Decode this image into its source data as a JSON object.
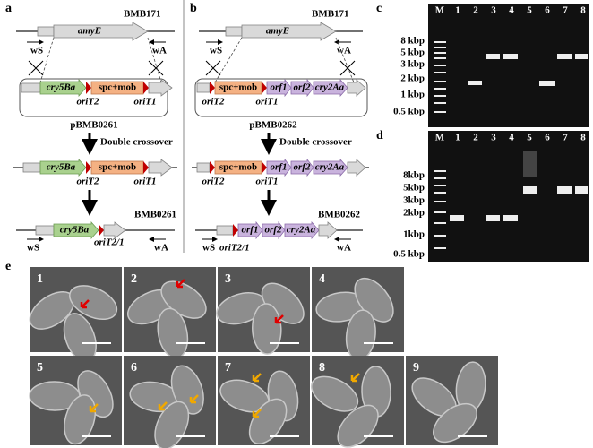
{
  "panel_labels": [
    "a",
    "b",
    "c",
    "d",
    "e"
  ],
  "panel_a": {
    "strain": "BMB171",
    "locus": "amyE",
    "primers": [
      "wS",
      "wA"
    ],
    "plasmid_genes": [
      "cry5Ba",
      "spc+mob"
    ],
    "plasmid_oris": [
      "oriT2",
      "oriT1"
    ],
    "plasmid": "pBMB0261",
    "step": "Double crossover",
    "intermediate_genes": [
      "cry5Ba",
      "spc+mob"
    ],
    "intermediate_oris": [
      "oriT2",
      "oriT1"
    ],
    "final_strain": "BMB0261",
    "final_primers": [
      "wS",
      "wA"
    ],
    "final_gene": "cry5Ba",
    "final_ori": "oriT2/1"
  },
  "panel_b": {
    "strain": "BMB171",
    "locus": "amyE",
    "primers": [
      "wS",
      "wA"
    ],
    "plasmid_genes": [
      "spc+mob",
      "orf1",
      "orf2",
      "cry2Aa"
    ],
    "plasmid_oris": [
      "oriT2",
      "oriT1"
    ],
    "plasmid": "pBMB0262",
    "step": "Double crossover",
    "intermediate_genes": [
      "spc+mob",
      "orf1",
      "orf2",
      "cry2Aa"
    ],
    "intermediate_oris": [
      "oriT2",
      "oriT1"
    ],
    "final_strain": "BMB0262",
    "final_primers": [
      "wS",
      "wA"
    ],
    "final_genes": [
      "orf1",
      "orf2",
      "cry2Aa"
    ],
    "final_ori": "oriT2/1"
  },
  "panel_c": {
    "lanes": [
      "M",
      "1",
      "2",
      "3",
      "4",
      "5",
      "6",
      "7",
      "8"
    ],
    "ladder": [
      "8 kbp",
      "5 kbp",
      "3 kbp",
      "2 kbp",
      "1 kbp",
      "0.5 kbp"
    ]
  },
  "panel_d": {
    "lanes": [
      "M",
      "1",
      "2",
      "3",
      "4",
      "5",
      "6",
      "7",
      "8"
    ],
    "ladder": [
      "8kbp",
      "5kbp",
      "3kbp",
      "2kbp",
      "1kbp",
      "0.5 kbp"
    ]
  },
  "panel_e": {
    "images": [
      "1",
      "2",
      "3",
      "4",
      "5",
      "6",
      "7",
      "8",
      "9"
    ]
  }
}
